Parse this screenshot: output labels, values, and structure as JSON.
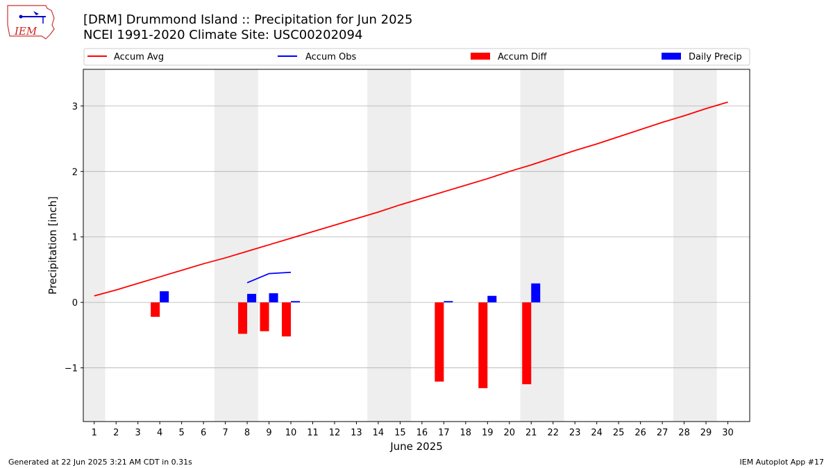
{
  "header": {
    "title_line1": "[DRM] Drummond Island :: Precipitation for Jun 2025",
    "title_line2": "NCEI 1991-2020 Climate Site: USC00202094"
  },
  "logo": {
    "text": "IEM"
  },
  "footer": {
    "generated": "Generated at 22 Jun 2025 3:21 AM CDT in 0.31s",
    "app": "IEM Autoplot App #17"
  },
  "colors": {
    "avg": "#ff0000",
    "obs": "#0000ff",
    "diff": "#ff0000",
    "daily": "#0000ff",
    "weekend": "#eeeeee",
    "grid": "#b0b0b0"
  },
  "chart_data": {
    "type": "bar",
    "xlabel": "June 2025",
    "ylabel": "Precipitation [inch]",
    "xlim": [
      0.5,
      31.0
    ],
    "ylim": [
      -1.82,
      3.56
    ],
    "yticks": [
      -1,
      0,
      1,
      2,
      3
    ],
    "ytick_labels": [
      "−1",
      "0",
      "1",
      "2",
      "3"
    ],
    "x": [
      1,
      2,
      3,
      4,
      5,
      6,
      7,
      8,
      9,
      10,
      11,
      12,
      13,
      14,
      15,
      16,
      17,
      18,
      19,
      20,
      21,
      22,
      23,
      24,
      25,
      26,
      27,
      28,
      29,
      30
    ],
    "weekend_spans": [
      [
        0.5,
        1.5
      ],
      [
        6.5,
        8.5
      ],
      [
        13.5,
        15.5
      ],
      [
        20.5,
        22.5
      ],
      [
        27.5,
        29.5
      ]
    ],
    "legend": [
      {
        "label": "Accum Avg",
        "kind": "line",
        "color": "#ff0000"
      },
      {
        "label": "Accum Obs",
        "kind": "line",
        "color": "#0000ff"
      },
      {
        "label": "Accum Diff",
        "kind": "bar",
        "color": "#ff0000"
      },
      {
        "label": "Daily Precip",
        "kind": "bar",
        "color": "#0000ff"
      }
    ],
    "series": [
      {
        "name": "Accum Avg",
        "kind": "line",
        "x": [
          1,
          2,
          3,
          4,
          5,
          6,
          7,
          8,
          9,
          10,
          11,
          12,
          13,
          14,
          15,
          16,
          17,
          18,
          19,
          20,
          21,
          22,
          23,
          24,
          25,
          26,
          27,
          28,
          29,
          30
        ],
        "values": [
          0.1,
          0.19,
          0.29,
          0.39,
          0.49,
          0.59,
          0.68,
          0.78,
          0.88,
          0.98,
          1.08,
          1.18,
          1.28,
          1.38,
          1.49,
          1.59,
          1.69,
          1.79,
          1.89,
          2.0,
          2.1,
          2.21,
          2.32,
          2.42,
          2.53,
          2.64,
          2.75,
          2.85,
          2.96,
          3.06
        ]
      },
      {
        "name": "Accum Obs",
        "kind": "line",
        "x": [
          8,
          9,
          10
        ],
        "values": [
          0.3,
          0.44,
          0.46
        ]
      },
      {
        "name": "Accum Diff",
        "kind": "bar",
        "x": [
          4,
          8,
          9,
          10,
          17,
          19,
          21
        ],
        "values": [
          -0.22,
          -0.48,
          -0.44,
          -0.52,
          -1.21,
          -1.31,
          -1.25
        ]
      },
      {
        "name": "Daily Precip",
        "kind": "bar",
        "x": [
          4,
          8,
          9,
          10,
          17,
          19,
          21
        ],
        "values": [
          0.17,
          0.13,
          0.14,
          0.02,
          0.02,
          0.1,
          0.29
        ]
      }
    ]
  }
}
